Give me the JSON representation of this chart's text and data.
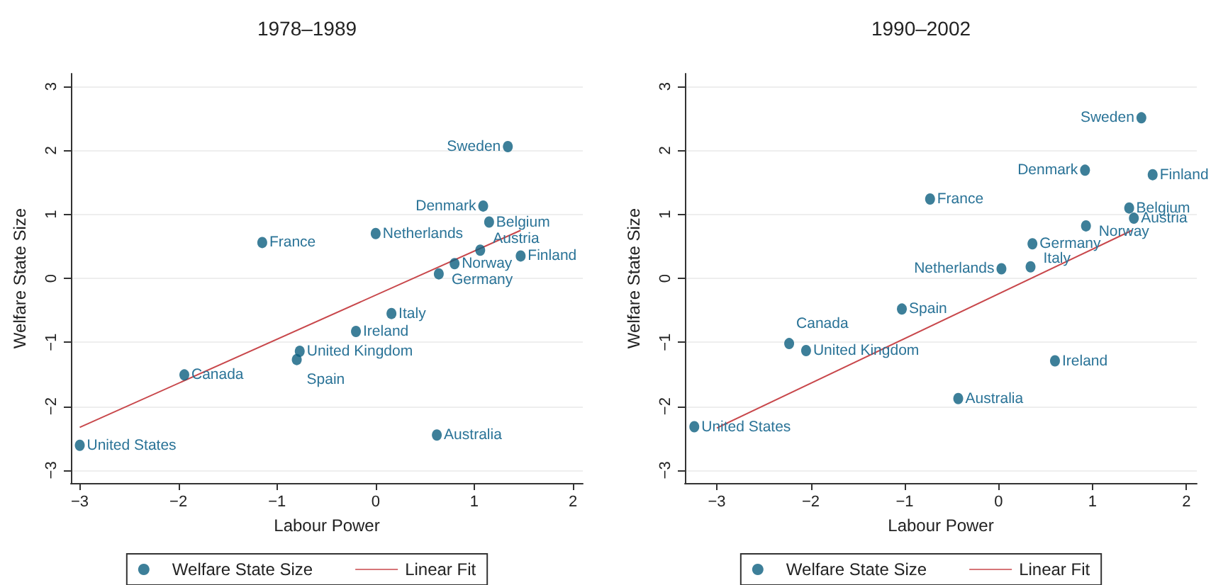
{
  "chart_data": [
    {
      "type": "scatter",
      "title": "1978–1989",
      "xlabel": "Labour Power",
      "ylabel": "Welfare State Size",
      "xlim": [
        -3.09,
        2.1
      ],
      "xticks": [
        -3,
        -2,
        -1,
        0,
        1,
        2
      ],
      "ylim": [
        -3.2,
        3.2
      ],
      "yticks": [
        -3,
        -2,
        -1,
        0,
        1,
        2,
        3
      ],
      "grid": "y",
      "legend": "bottom",
      "series": [
        {
          "name": "Welfare State Size",
          "color": "#0d5f80",
          "x": [
            -3.0,
            -1.94,
            -1.15,
            -0.8,
            -0.77,
            -0.2,
            0.16,
            0.0,
            0.64,
            0.62,
            0.8,
            1.06,
            1.09,
            1.15,
            1.47,
            1.34
          ],
          "values": [
            -2.61,
            -1.51,
            0.56,
            -1.27,
            -1.14,
            -0.83,
            -0.55,
            0.7,
            0.07,
            -2.45,
            0.23,
            0.44,
            1.13,
            0.88,
            0.35,
            2.06
          ]
        },
        {
          "name": "Linear Fit",
          "type": "line",
          "color": "#c8474b",
          "x": [
            -3.0,
            1.47
          ],
          "values": [
            -2.33,
            0.75
          ]
        }
      ],
      "annotations": [
        {
          "text": "United States",
          "x": -3.0,
          "y": -2.61
        },
        {
          "text": "Canada",
          "x": -1.94,
          "y": -1.51
        },
        {
          "text": "France",
          "x": -1.15,
          "y": 0.56
        },
        {
          "text": "Spain",
          "x": -0.8,
          "y": -1.27
        },
        {
          "text": "United Kingdom",
          "x": -0.77,
          "y": -1.14
        },
        {
          "text": "Ireland",
          "x": -0.2,
          "y": -0.83
        },
        {
          "text": "Italy",
          "x": 0.16,
          "y": -0.55
        },
        {
          "text": "Netherlands",
          "x": 0.0,
          "y": 0.7
        },
        {
          "text": "Germany",
          "x": 0.64,
          "y": 0.07
        },
        {
          "text": "Australia",
          "x": 0.62,
          "y": -2.45
        },
        {
          "text": "Norway",
          "x": 0.8,
          "y": 0.23
        },
        {
          "text": "Austria",
          "x": 1.06,
          "y": 0.44
        },
        {
          "text": "Denmark",
          "x": 1.09,
          "y": 1.13
        },
        {
          "text": "Belgium",
          "x": 1.15,
          "y": 0.88
        },
        {
          "text": "Finland",
          "x": 1.47,
          "y": 0.35
        },
        {
          "text": "Sweden",
          "x": 1.34,
          "y": 2.06
        }
      ]
    },
    {
      "type": "scatter",
      "title": "1990–2002",
      "xlabel": "Labour Power",
      "ylabel": "Welfare State Size",
      "xlim": [
        -3.34,
        2.11
      ],
      "xticks": [
        -3,
        -2,
        -1,
        0,
        1,
        2
      ],
      "ylim": [
        -3.2,
        3.2
      ],
      "yticks": [
        -3,
        -2,
        -1,
        0,
        1,
        2,
        3
      ],
      "grid": "y",
      "legend": "bottom",
      "series": [
        {
          "name": "Welfare State Size",
          "color": "#0d5f80",
          "x": [
            -3.24,
            -2.23,
            -2.05,
            -1.03,
            -0.73,
            -0.43,
            0.03,
            0.34,
            0.36,
            0.6,
            0.93,
            0.92,
            1.39,
            1.44,
            1.52,
            1.64
          ],
          "values": [
            -2.32,
            -1.02,
            -1.13,
            -0.48,
            1.24,
            -1.88,
            0.15,
            0.18,
            0.54,
            -1.29,
            0.82,
            1.69,
            1.1,
            0.94,
            2.51,
            1.62
          ]
        },
        {
          "name": "Linear Fit",
          "type": "line",
          "color": "#c8474b",
          "x": [
            -3.0,
            1.42
          ],
          "values": [
            -2.34,
            0.75
          ]
        }
      ],
      "annotations": [
        {
          "text": "United States",
          "x": -3.24,
          "y": -2.32
        },
        {
          "text": "Canada",
          "x": -2.23,
          "y": -1.02
        },
        {
          "text": "United Kingdom",
          "x": -2.05,
          "y": -1.13
        },
        {
          "text": "Spain",
          "x": -1.03,
          "y": -0.48
        },
        {
          "text": "France",
          "x": -0.73,
          "y": 1.24
        },
        {
          "text": "Australia",
          "x": -0.43,
          "y": -1.88
        },
        {
          "text": "Netherlands",
          "x": 0.03,
          "y": 0.15
        },
        {
          "text": "Italy",
          "x": 0.34,
          "y": 0.18
        },
        {
          "text": "Germany",
          "x": 0.36,
          "y": 0.54
        },
        {
          "text": "Ireland",
          "x": 0.6,
          "y": -1.29
        },
        {
          "text": "Norway",
          "x": 0.93,
          "y": 0.82
        },
        {
          "text": "Denmark",
          "x": 0.92,
          "y": 1.69
        },
        {
          "text": "Belgium",
          "x": 1.39,
          "y": 1.1
        },
        {
          "text": "Austria",
          "x": 1.44,
          "y": 0.94
        },
        {
          "text": "Sweden",
          "x": 1.52,
          "y": 2.51
        },
        {
          "text": "Finland",
          "x": 1.64,
          "y": 1.62
        }
      ]
    }
  ]
}
